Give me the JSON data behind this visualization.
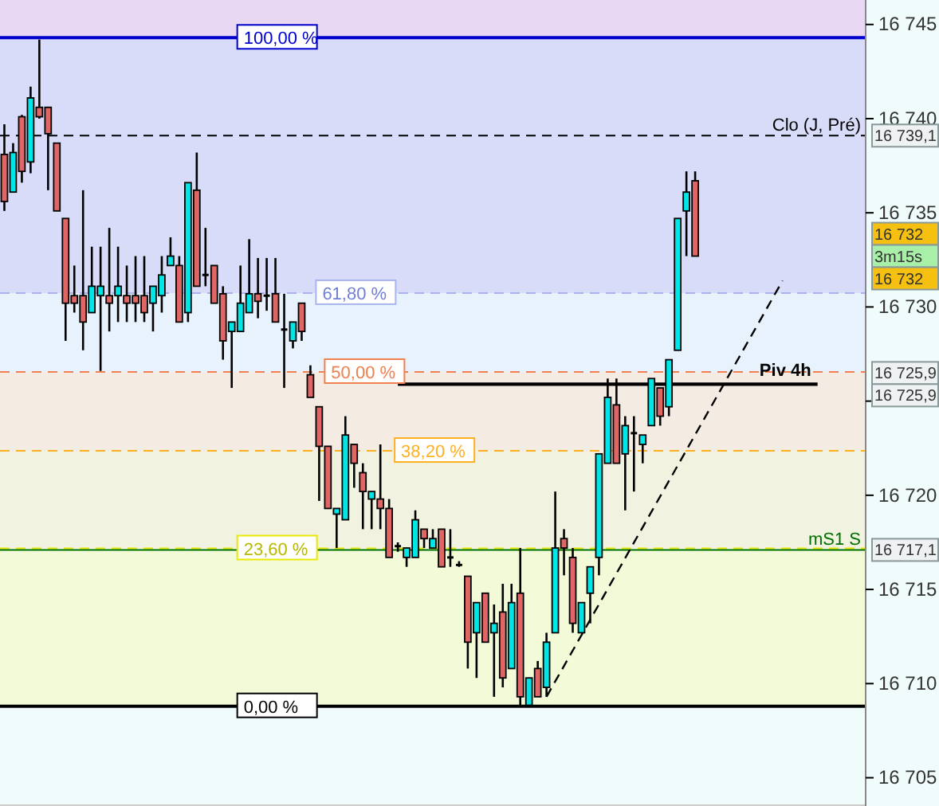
{
  "chart_data": {
    "type": "candlestick",
    "categories": [
      null,
      null,
      null,
      null,
      null,
      null,
      null,
      null,
      null,
      null,
      null,
      null,
      null,
      null,
      null,
      null,
      null,
      null,
      null,
      null,
      null,
      null,
      null,
      null,
      null,
      null,
      null,
      null,
      null,
      null,
      null,
      null,
      null,
      null,
      null,
      null,
      null,
      null,
      null,
      null,
      null,
      null,
      null,
      null,
      null,
      null,
      null,
      null,
      null,
      null,
      null,
      null,
      null,
      null,
      null,
      null,
      null,
      null,
      null,
      null,
      null,
      null,
      null,
      null,
      null,
      null,
      null,
      null,
      null,
      null,
      null,
      null,
      null,
      null,
      null,
      null,
      null,
      null,
      null,
      null,
      null,
      null,
      null,
      null,
      null,
      null,
      null,
      null,
      null,
      null,
      null,
      null,
      null,
      null,
      null,
      null,
      null,
      null,
      null
    ],
    "ylim": [
      16703.5,
      16746.3
    ],
    "yticks": [
      {
        "value": 16705,
        "label": "16 705"
      },
      {
        "value": 16710,
        "label": "16 710"
      },
      {
        "value": 16715,
        "label": "16 715"
      },
      {
        "value": 16720,
        "label": "16 720"
      },
      {
        "value": 16725,
        "label": null
      },
      {
        "value": 16730,
        "label": "16 730"
      },
      {
        "value": 16735,
        "label": "16 735"
      },
      {
        "value": 16740,
        "label": "16 740"
      },
      {
        "value": 16745,
        "label": "16 745"
      }
    ],
    "tick_labels": "y",
    "ohlc": [
      [
        16738.1,
        16739.7,
        16735.1,
        16735.6
      ],
      [
        16736.1,
        16738.7,
        16736.1,
        16738.2
      ],
      [
        16740.1,
        16740.2,
        16736.6,
        16737.2
      ],
      [
        16737.7,
        16741.7,
        16737.1,
        16741.1
      ],
      [
        16740.6,
        16744.2,
        16740.0,
        16740.1
      ],
      [
        16740.6,
        16740.6,
        16736.2,
        16739.2
      ],
      [
        16738.7,
        16738.7,
        16735.1,
        16735.1
      ],
      [
        16734.7,
        16734.7,
        16728.2,
        16730.2
      ],
      [
        16730.6,
        16732.2,
        16729.7,
        16730.2
      ],
      [
        16730.6,
        16736.2,
        16727.7,
        16729.2
      ],
      [
        16729.7,
        16733.2,
        16729.7,
        16731.1
      ],
      [
        16730.6,
        16733.2,
        16726.6,
        16731.1
      ],
      [
        16730.6,
        16734.2,
        16728.7,
        16730.2
      ],
      [
        16730.6,
        16733.2,
        16729.2,
        16731.1
      ],
      [
        16730.6,
        16732.2,
        16729.2,
        16730.2
      ],
      [
        16730.6,
        16732.7,
        16729.2,
        16730.2
      ],
      [
        16730.6,
        16732.7,
        16729.2,
        16729.7
      ],
      [
        16730.2,
        16731.1,
        16728.7,
        16731.1
      ],
      [
        16730.6,
        16732.7,
        16729.7,
        16731.7
      ],
      [
        16732.2,
        16733.7,
        16732.2,
        16732.7
      ],
      [
        16732.2,
        16732.7,
        16729.2,
        16729.2
      ],
      [
        16729.7,
        16736.6,
        16729.2,
        16736.6
      ],
      [
        16736.2,
        16738.2,
        16731.1,
        16731.1
      ],
      [
        16731.7,
        16734.2,
        16731.1,
        16731.7
      ],
      [
        16732.2,
        16732.2,
        16730.2,
        16730.2
      ],
      [
        16730.7,
        16731.1,
        16727.2,
        16728.2
      ],
      [
        16728.7,
        16729.2,
        16725.7,
        16729.2
      ],
      [
        16728.7,
        16732.2,
        16728.7,
        16730.2
      ],
      [
        16729.7,
        16733.6,
        16729.7,
        16730.7
      ],
      [
        16730.7,
        16732.6,
        16729.4,
        16730.3
      ],
      [
        16730.6,
        16732.6,
        16729.8,
        16730.6
      ],
      [
        16730.7,
        16732.6,
        16729.2,
        16729.2
      ],
      [
        16728.8,
        16730.7,
        16725.7,
        16728.8
      ],
      [
        16728.2,
        16729.2,
        16727.8,
        16729.2
      ],
      [
        16730.2,
        16730.2,
        16728.2,
        16728.7
      ],
      [
        16726.4,
        16726.9,
        16725.2,
        16725.2
      ],
      [
        16724.7,
        16724.7,
        16719.7,
        16722.6
      ],
      [
        16722.6,
        16722.6,
        16719.3,
        16719.3
      ],
      [
        16719.0,
        16719.3,
        16717.2,
        16719.3
      ],
      [
        16718.7,
        16724.2,
        16718.7,
        16723.2
      ],
      [
        16722.7,
        16722.7,
        16720.4,
        16721.7
      ],
      [
        16721.2,
        16721.7,
        16718.2,
        16720.2
      ],
      [
        16719.8,
        16720.2,
        16718.2,
        16720.2
      ],
      [
        16719.8,
        16722.7,
        16718.2,
        16719.3
      ],
      [
        16719.3,
        16719.8,
        16716.7,
        16716.7
      ],
      [
        16717.3,
        16717.5,
        16717.0,
        16717.3
      ],
      [
        16716.7,
        16717.2,
        16716.2,
        16717.2
      ],
      [
        16716.7,
        16719.2,
        16716.7,
        16718.7
      ],
      [
        16718.2,
        16718.2,
        16717.2,
        16717.7
      ],
      [
        16717.2,
        16718.2,
        16717.2,
        16717.7
      ],
      [
        16718.2,
        16718.2,
        16716.2,
        16716.2
      ],
      [
        16716.7,
        16718.2,
        16716.2,
        16716.7
      ],
      [
        16716.3,
        16716.5,
        16716.2,
        16716.3
      ],
      [
        16715.7,
        16715.7,
        16710.8,
        16712.2
      ],
      [
        16712.7,
        16714.3,
        16710.3,
        16714.3
      ],
      [
        16714.8,
        16714.8,
        16712.2,
        16712.2
      ],
      [
        16712.7,
        16714.2,
        16709.3,
        16713.2
      ],
      [
        16713.8,
        16715.3,
        16709.8,
        16710.3
      ],
      [
        16710.8,
        16715.3,
        16710.8,
        16714.3
      ],
      [
        16714.8,
        16717.2,
        16708.85,
        16709.3
      ],
      [
        16708.85,
        16710.3,
        16708.85,
        16710.3
      ],
      [
        16710.8,
        16711.2,
        16709.3,
        16709.3
      ],
      [
        16709.8,
        16712.7,
        16709.3,
        16712.2
      ],
      [
        16712.7,
        16720.2,
        16712.7,
        16717.2
      ],
      [
        16717.7,
        16718.2,
        16715.75,
        16717.2
      ],
      [
        16716.7,
        16717.2,
        16712.7,
        16713.2
      ],
      [
        16712.7,
        16714.3,
        16712.7,
        16714.3
      ],
      [
        16714.8,
        16716.2,
        16713.2,
        16716.2
      ],
      [
        16716.7,
        16722.2,
        16715.75,
        16722.2
      ],
      [
        16721.7,
        16726.2,
        16721.7,
        16725.2
      ],
      [
        16724.8,
        16726.2,
        16721.7,
        16721.7
      ],
      [
        16722.2,
        16724.2,
        16719.2,
        16723.7
      ],
      [
        16723.3,
        16724.2,
        16720.2,
        16723.3
      ],
      [
        16722.7,
        16723.2,
        16721.7,
        16723.2
      ],
      [
        16723.7,
        16726.2,
        16723.7,
        16726.2
      ],
      [
        16725.7,
        16725.7,
        16723.7,
        16724.2
      ],
      [
        16724.7,
        16727.2,
        16724.2,
        16727.2
      ],
      [
        16727.7,
        16734.7,
        16727.7,
        16734.7
      ],
      [
        16735.1,
        16737.2,
        16732.7,
        16736.1
      ],
      [
        16736.7,
        16737.2,
        16732.7,
        16732.7
      ],
      null,
      null,
      null,
      null,
      null,
      null,
      null,
      null,
      null,
      null,
      null,
      null,
      null,
      null,
      null,
      null,
      null,
      null,
      null
    ],
    "colors": [
      "#e06666",
      "#00e5e5",
      "#e06666",
      "#00e5e5",
      "#e06666",
      "#e06666",
      "#e06666",
      "#e06666",
      "#e06666",
      "#e06666",
      "#00e5e5",
      "#00e5e5",
      "#e06666",
      "#00e5e5",
      "#e06666",
      "#e06666",
      "#e06666",
      "#00e5e5",
      "#00e5e5",
      "#00e5e5",
      "#e06666",
      "#00e5e5",
      "#e06666",
      "#000000",
      "#e06666",
      "#e06666",
      "#00e5e5",
      "#00e5e5",
      "#00e5e5",
      "#e06666",
      "#000000",
      "#e06666",
      "#000000",
      "#00e5e5",
      "#e06666",
      "#e06666",
      "#e06666",
      "#e06666",
      "#00e5e5",
      "#00e5e5",
      "#e06666",
      "#e06666",
      "#00e5e5",
      "#e06666",
      "#e06666",
      "#000000",
      "#00e5e5",
      "#00e5e5",
      "#e06666",
      "#00e5e5",
      "#e06666",
      "#000000",
      "#000000",
      "#e06666",
      "#00e5e5",
      "#e06666",
      "#00e5e5",
      "#e06666",
      "#00e5e5",
      "#e06666",
      "#00e5e5",
      "#e06666",
      "#00e5e5",
      "#00e5e5",
      "#e06666",
      "#e06666",
      "#00e5e5",
      "#00e5e5",
      "#00e5e5",
      "#00e5e5",
      "#e06666",
      "#00e5e5",
      "#000000",
      "#00e5e5",
      "#00e5e5",
      "#e06666",
      "#00e5e5",
      "#00e5e5",
      "#00e5e5",
      "#e06666",
      null,
      null,
      null,
      null,
      null,
      null,
      null,
      null,
      null,
      null,
      null,
      null,
      null,
      null,
      null,
      null,
      null,
      null,
      null
    ],
    "series": [
      {
        "type": "line",
        "values": [
          null,
          null,
          null,
          null,
          null,
          null,
          null,
          null,
          null,
          null,
          null,
          null,
          null,
          null,
          null,
          null,
          null,
          null,
          null,
          null,
          null,
          null,
          null,
          null,
          null,
          null,
          null,
          null,
          null,
          null,
          null,
          null,
          null,
          null,
          null,
          null,
          null,
          null,
          null,
          null,
          null,
          null,
          null,
          null,
          null,
          null,
          null,
          null,
          null,
          null,
          null,
          null,
          null,
          null,
          null,
          null,
          null,
          null,
          null,
          null,
          null,
          null,
          16709.3,
          null,
          null,
          null,
          null,
          null,
          null,
          null,
          null,
          null,
          null,
          null,
          null,
          null,
          null,
          null,
          null,
          null,
          null,
          null,
          null,
          null,
          null,
          null,
          null,
          null,
          null,
          16731.4,
          null,
          null,
          null,
          null,
          null,
          null,
          null,
          null,
          null
        ],
        "color": "#000000",
        "line_style": "dashed"
      },
      {
        "type": "line",
        "name": "Piv 4h",
        "values": [
          null,
          null,
          null,
          null,
          null,
          null,
          null,
          null,
          null,
          null,
          null,
          null,
          null,
          null,
          null,
          null,
          null,
          null,
          null,
          null,
          null,
          null,
          null,
          null,
          null,
          null,
          null,
          null,
          null,
          null,
          null,
          null,
          null,
          null,
          null,
          null,
          null,
          null,
          null,
          null,
          null,
          null,
          null,
          null,
          null,
          16725.9,
          null,
          null,
          null,
          null,
          null,
          null,
          null,
          null,
          null,
          null,
          null,
          null,
          null,
          null,
          null,
          null,
          null,
          null,
          null,
          null,
          null,
          null,
          null,
          null,
          null,
          null,
          null,
          null,
          null,
          null,
          null,
          null,
          null,
          null,
          null,
          null,
          null,
          null,
          null,
          null,
          null,
          null,
          null,
          null,
          null,
          null,
          null,
          16725.9,
          null,
          null,
          null,
          null,
          null
        ],
        "color": "#000000",
        "line_style": "solid"
      }
    ],
    "bands": [
      {
        "axis": "y",
        "from": 16744.3,
        "to": 16746.3,
        "color": "#e8d8f4"
      },
      {
        "axis": "y",
        "from": 16730.74,
        "to": 16744.3,
        "color": "#d8dcf8"
      },
      {
        "axis": "y",
        "from": 16726.55,
        "to": 16730.74,
        "color": "#e8f2fc"
      },
      {
        "axis": "y",
        "from": 16722.36,
        "to": 16726.55,
        "color": "#f4ebe2"
      },
      {
        "axis": "y",
        "from": 16717.18,
        "to": 16722.36,
        "color": "#f2f2e0"
      },
      {
        "axis": "y",
        "from": 16708.8,
        "to": 16717.18,
        "color": "#f2fad8"
      }
    ],
    "ref_lines": [
      {
        "axis": "y",
        "value": 16744.3,
        "color": "#0000cc",
        "line_style": "solid"
      },
      {
        "axis": "y",
        "value": 16730.74,
        "color": "#a8b4f0",
        "line_style": "dashed"
      },
      {
        "axis": "y",
        "value": 16726.55,
        "color": "#f08050",
        "line_style": "dashed"
      },
      {
        "axis": "y",
        "value": 16722.36,
        "color": "#ffb020",
        "line_style": "dashed"
      },
      {
        "axis": "y",
        "value": 16717.18,
        "color": "#e8e800",
        "line_style": "dashed"
      },
      {
        "axis": "y",
        "value": 16708.8,
        "color": "#000000",
        "line_style": "solid"
      },
      {
        "axis": "y",
        "value": 16739.1,
        "label": "Clo (J, Pré)",
        "color": "#000000",
        "line_style": "dashed"
      },
      {
        "axis": "y",
        "value": 16717.1,
        "label": "mS1 S",
        "color": "#007000",
        "line_style": "solid"
      }
    ],
    "annotations": [
      {
        "text": "100,00 %",
        "y": 16744.3
      },
      {
        "text": "61,80 %",
        "y": 16730.74
      },
      {
        "text": "50,00 %",
        "y": 16726.55
      },
      {
        "text": "38,20 %",
        "y": 16722.36
      },
      {
        "text": "23,60 %",
        "y": 16717.18
      },
      {
        "text": "0,00 %",
        "y": 16708.8
      },
      "16 739,1",
      "16 732",
      "3m15s",
      "16 732",
      "16 725,9",
      "16 725,9",
      "16 717,1"
    ]
  }
}
